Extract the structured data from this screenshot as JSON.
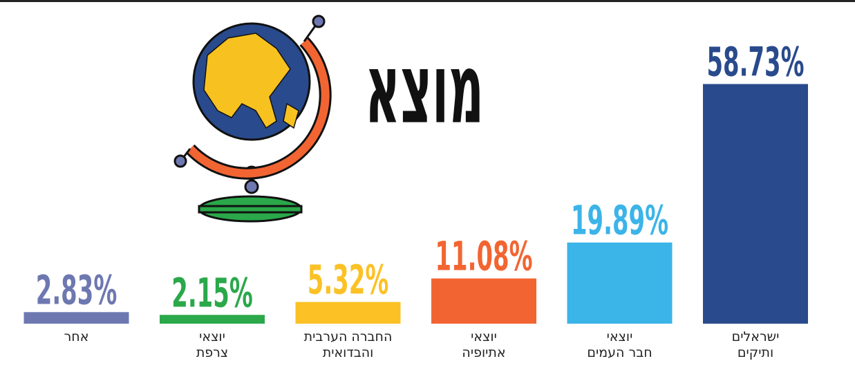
{
  "chart_data": {
    "type": "bar",
    "title": "מוצא",
    "categories": [
      "ישראלים\nותיקים",
      "יוצאי\nחבר העמים",
      "יוצאי\nאתיופיה",
      "החברה הערבית\nוהבדואית",
      "יוצאי\nצרפת",
      "אחר"
    ],
    "values": [
      58.73,
      19.89,
      11.08,
      5.32,
      2.15,
      2.83
    ],
    "value_labels": [
      "58.73%",
      "19.89%",
      "11.08%",
      "5.32%",
      "2.15%",
      "2.83%"
    ],
    "colors": [
      "#294a8c",
      "#3bb4e8",
      "#f26532",
      "#fbc125",
      "#2aa84a",
      "#6e78b0"
    ]
  }
}
